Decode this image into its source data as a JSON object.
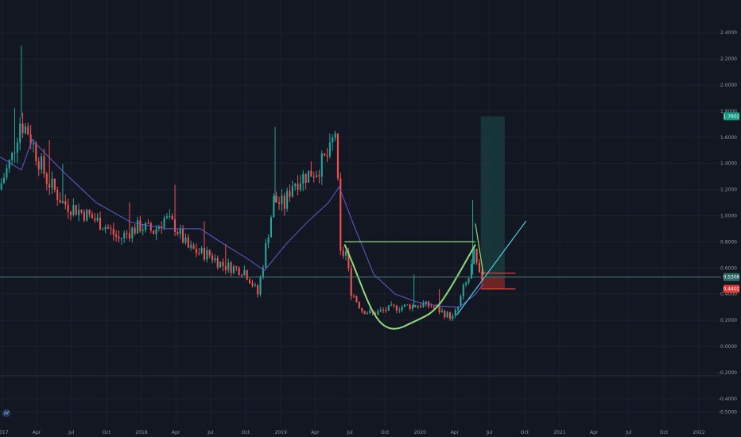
{
  "colors": {
    "background": "#131722",
    "grid": "#1c2030",
    "axis_text": "#8f97a8",
    "up": "#26a69a",
    "down": "#ef5350",
    "ma": "#6a5acd",
    "pattern": "#8fdc7c",
    "trend": "#4dd0e1",
    "target_zone": "#1b4d4a",
    "stop_zone": "#8b2a2a",
    "price_line": "#4e7c78",
    "badge_target": "#119b87",
    "badge_current": "#2c6b66",
    "badge_stop": "#e53935"
  },
  "badges": {
    "target": "1.7602",
    "current": "0.5306",
    "current_sub": "0.5306",
    "stop": "0.4402"
  },
  "chart_data": {
    "type": "candlestick",
    "title": "",
    "xlabel": "",
    "ylabel": "",
    "grid": true,
    "ylim": [
      -0.62,
      2.65
    ],
    "xlim": [
      "2016-12-26",
      "2022-02-28"
    ],
    "y_ticks": [
      "2.4000",
      "2.2000",
      "2.0000",
      "1.8000",
      "1.6000",
      "1.4000",
      "1.2000",
      "1.0000",
      "0.8000",
      "0.6000",
      "0.4000",
      "0.2000",
      "0.0000",
      "-0.2000",
      "-0.4000",
      "-0.5000"
    ],
    "y_tick_values": [
      2.4,
      2.2,
      2.0,
      1.8,
      1.6,
      1.4,
      1.2,
      1.0,
      0.8,
      0.6,
      0.4,
      0.2,
      0.0,
      -0.2,
      -0.4,
      -0.5
    ],
    "x_ticks": [
      "2017",
      "Apr",
      "Jul",
      "Oct",
      "2018",
      "Apr",
      "Jul",
      "Oct",
      "2019",
      "Apr",
      "Jul",
      "Oct",
      "2020",
      "Apr",
      "Jul",
      "Oct",
      "2021",
      "Apr",
      "Jul",
      "Oct",
      "2022"
    ],
    "x_tick_dates": [
      "2017-01-01",
      "2017-04-01",
      "2017-07-01",
      "2017-10-01",
      "2018-01-01",
      "2018-04-01",
      "2018-07-01",
      "2018-10-01",
      "2019-01-01",
      "2019-04-01",
      "2019-07-01",
      "2019-10-01",
      "2020-01-01",
      "2020-04-01",
      "2020-07-01",
      "2020-10-01",
      "2021-01-01",
      "2021-04-01",
      "2021-07-01",
      "2021-10-01",
      "2022-01-01"
    ],
    "anchors": [
      [
        "2016-12-26",
        1.2
      ],
      [
        "2017-01-30",
        1.45
      ],
      [
        "2017-02-20",
        1.72
      ],
      [
        "2017-03-13",
        1.65
      ],
      [
        "2017-04-03",
        1.48
      ],
      [
        "2017-05-01",
        1.28
      ],
      [
        "2017-06-12",
        1.1
      ],
      [
        "2017-08-07",
        1.02
      ],
      [
        "2017-10-02",
        0.92
      ],
      [
        "2017-11-06",
        0.82
      ],
      [
        "2017-12-04",
        0.88
      ],
      [
        "2018-01-01",
        0.92
      ],
      [
        "2018-02-05",
        0.88
      ],
      [
        "2018-03-05",
        0.98
      ],
      [
        "2018-04-02",
        0.92
      ],
      [
        "2018-05-07",
        0.75
      ],
      [
        "2018-06-04",
        0.72
      ],
      [
        "2018-07-02",
        0.7
      ],
      [
        "2018-08-06",
        0.62
      ],
      [
        "2018-09-03",
        0.6
      ],
      [
        "2018-10-01",
        0.58
      ],
      [
        "2018-10-22",
        0.48
      ],
      [
        "2018-11-05",
        0.4
      ],
      [
        "2018-12-17",
        1.12
      ],
      [
        "2019-01-14",
        1.08
      ],
      [
        "2019-02-04",
        1.25
      ],
      [
        "2019-03-04",
        1.3
      ],
      [
        "2019-04-08",
        1.35
      ],
      [
        "2019-05-13",
        1.48
      ],
      [
        "2019-05-27",
        1.65
      ],
      [
        "2019-06-03",
        1.22
      ],
      [
        "2019-06-10",
        0.7
      ],
      [
        "2019-06-24",
        0.72
      ],
      [
        "2019-07-08",
        0.42
      ],
      [
        "2019-08-05",
        0.28
      ],
      [
        "2019-09-02",
        0.25
      ],
      [
        "2019-10-07",
        0.28
      ],
      [
        "2019-11-04",
        0.3
      ],
      [
        "2019-12-09",
        0.31
      ],
      [
        "2020-01-13",
        0.32
      ],
      [
        "2020-02-10",
        0.3
      ],
      [
        "2020-03-09",
        0.25
      ],
      [
        "2020-03-30",
        0.22
      ],
      [
        "2020-04-13",
        0.3
      ],
      [
        "2020-04-27",
        0.44
      ],
      [
        "2020-05-11",
        0.52
      ],
      [
        "2020-05-25",
        0.7
      ],
      [
        "2020-06-08",
        0.53
      ]
    ],
    "moving_average": [
      [
        "2016-12-26",
        1.45
      ],
      [
        "2017-02-20",
        1.35
      ],
      [
        "2017-03-20",
        1.58
      ],
      [
        "2017-06-05",
        1.35
      ],
      [
        "2017-09-04",
        1.1
      ],
      [
        "2017-12-04",
        0.95
      ],
      [
        "2018-03-05",
        0.9
      ],
      [
        "2018-06-04",
        0.9
      ],
      [
        "2018-08-06",
        0.78
      ],
      [
        "2018-10-01",
        0.68
      ],
      [
        "2018-11-19",
        0.58
      ],
      [
        "2019-01-14",
        0.78
      ],
      [
        "2019-03-11",
        0.95
      ],
      [
        "2019-05-06",
        1.1
      ],
      [
        "2019-06-03",
        1.22
      ],
      [
        "2019-07-15",
        0.9
      ],
      [
        "2019-09-02",
        0.55
      ],
      [
        "2019-10-28",
        0.4
      ],
      [
        "2019-12-23",
        0.34
      ],
      [
        "2020-02-17",
        0.31
      ],
      [
        "2020-04-13",
        0.3
      ],
      [
        "2020-05-25",
        0.4
      ],
      [
        "2020-06-15",
        0.48
      ]
    ],
    "cup_rim": [
      [
        "2019-06-17",
        0.8
      ],
      [
        "2020-05-25",
        0.8
      ]
    ],
    "cup_curve": [
      [
        "2019-06-17",
        0.78
      ],
      [
        "2019-08-19",
        0.38
      ],
      [
        "2019-11-25",
        0.16
      ],
      [
        "2020-02-03",
        0.2
      ],
      [
        "2020-05-25",
        0.78
      ]
    ],
    "trendlines": [
      [
        [
          "2020-04-06",
          0.24
        ],
        [
          "2020-10-05",
          0.96
        ]
      ],
      [
        [
          "2020-05-25",
          0.94
        ],
        [
          "2020-06-15",
          0.55
        ]
      ]
    ],
    "position": {
      "start": "2020-06-08",
      "end": "2020-08-10",
      "end_stop": "2020-09-07",
      "entry": 0.5306,
      "target": 1.7602,
      "stop": 0.4402
    }
  }
}
